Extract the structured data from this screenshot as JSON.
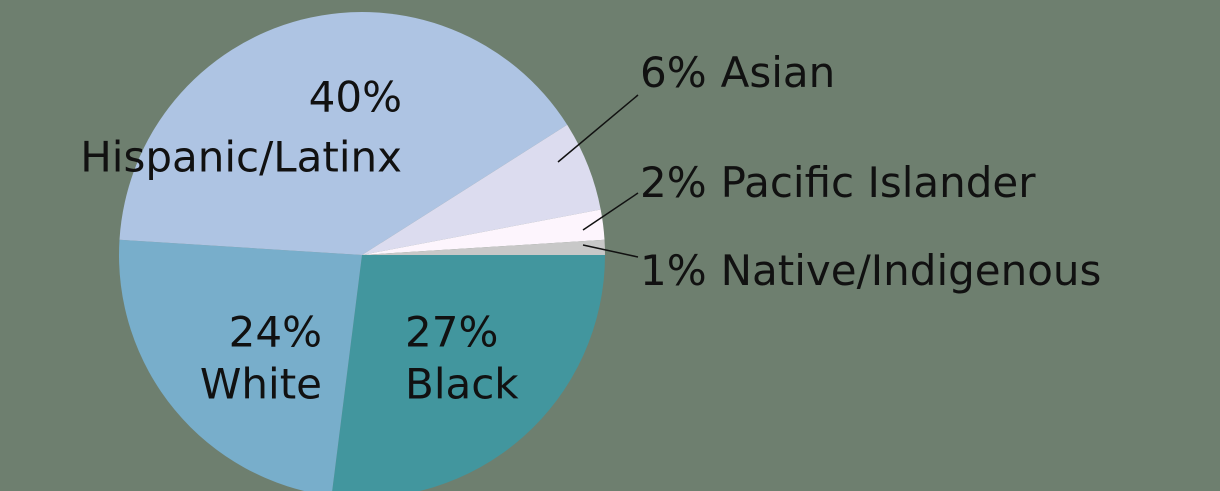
{
  "chart_data": {
    "type": "pie",
    "categories": [
      "Black",
      "White",
      "Hispanic/Latinx",
      "Asian",
      "Pacific Islander",
      "Native/Indigenous"
    ],
    "values": [
      27,
      24,
      40,
      6,
      2,
      1
    ],
    "value_labels": [
      "27%",
      "24%",
      "40%",
      "6%",
      "2%",
      "1%"
    ],
    "colors": [
      "#42969e",
      "#78aecb",
      "#aec4e3",
      "#dcdcef",
      "#fdf5fd",
      "#c8c8c8"
    ]
  }
}
